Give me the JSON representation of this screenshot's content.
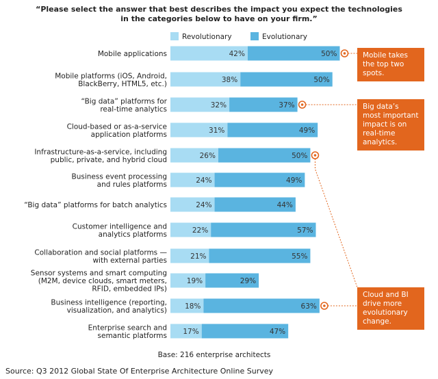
{
  "chart_data": {
    "type": "bar",
    "stacked": true,
    "orientation": "horizontal",
    "title_lines": [
      "“Please select the answer that best describes the impact you expect the technologies",
      "in the categories below to have on your firm.”"
    ],
    "categories": [
      [
        "Mobile applications"
      ],
      [
        "Mobile platforms (iOS, Android,",
        "BlackBerry, HTML5, etc.)"
      ],
      [
        "“Big data” platforms for",
        "real-time analytics"
      ],
      [
        "Cloud-based or as-a-service",
        "application platforms"
      ],
      [
        "Infrastructure-as-a-service, including",
        "public, private, and hybrid cloud"
      ],
      [
        "Business event processing",
        "and rules platforms"
      ],
      [
        "“Big data” platforms for batch analytics"
      ],
      [
        "Customer intelligence and",
        "analytics platforms"
      ],
      [
        "Collaboration and social platforms —",
        "with external parties"
      ],
      [
        "Sensor systems and smart computing",
        "(M2M, device clouds, smart meters,",
        "RFID, embedded IPs)"
      ],
      [
        "Business intelligence (reporting,",
        "visualization, and analytics)"
      ],
      [
        "Enterprise search and",
        "semantic platforms"
      ]
    ],
    "series": [
      {
        "name": "Revolutionary",
        "color": "#a8dcf3",
        "values": [
          42,
          38,
          32,
          31,
          26,
          24,
          24,
          22,
          21,
          19,
          18,
          17
        ]
      },
      {
        "name": "Evolutionary",
        "color": "#5ab4e0",
        "values": [
          50,
          50,
          37,
          49,
          50,
          49,
          44,
          57,
          55,
          29,
          63,
          47
        ]
      }
    ],
    "value_suffix": "%",
    "xlim": [
      0,
      100
    ],
    "grid": false,
    "legend": "top-center",
    "base_note": "Base: 216 enterprise architects",
    "source": "Source: Q3 2012 Global State Of Enterprise Architecture Online Survey",
    "highlight_color": "#e2661e",
    "callouts": [
      {
        "text": "Mobile takes the top two spots.",
        "points_to": [
          0
        ]
      },
      {
        "text": "Big data’s most important impact is on real-time analytics.",
        "points_to": [
          2
        ]
      },
      {
        "text": "Cloud and BI drive more evolutionary change.",
        "points_to": [
          4,
          10
        ]
      }
    ]
  },
  "callouts": {
    "mobile": "Mobile takes the top two spots.",
    "bigdata": "Big data’s most important impact is on real-time analytics.",
    "cloud": "Cloud and BI drive more evolutionary change."
  }
}
